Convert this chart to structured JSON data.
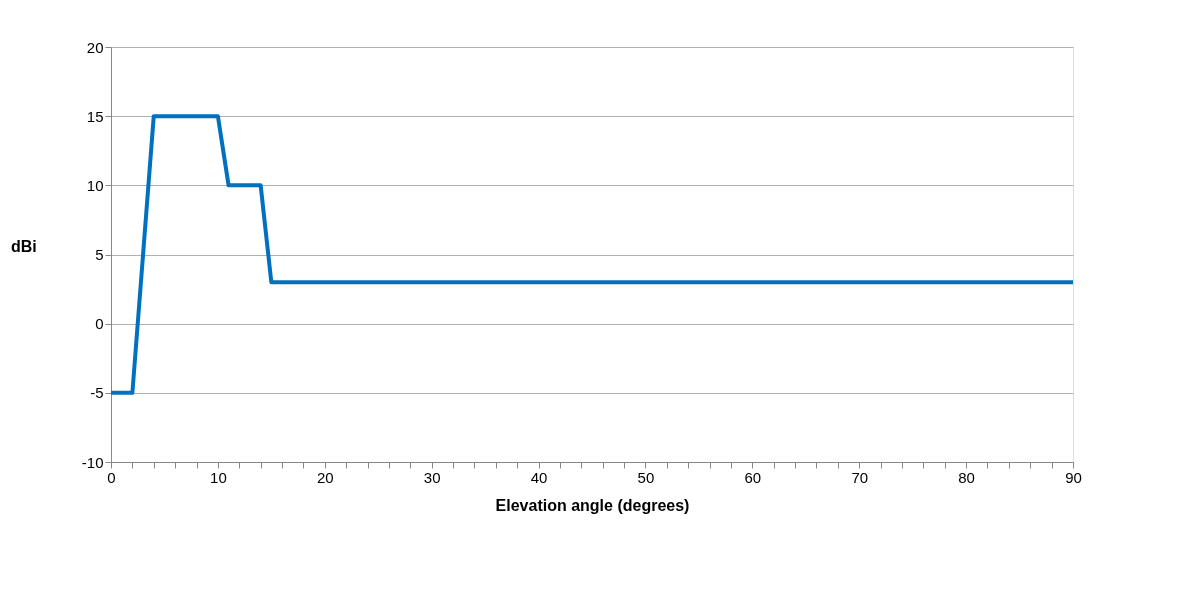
{
  "chart_data": {
    "type": "line",
    "xlabel": "Elevation angle (degrees)",
    "ylabel": "dBi",
    "x": [
      0,
      2,
      4,
      10,
      11,
      14,
      15,
      90
    ],
    "series": [
      {
        "color": "#0070c0",
        "values": [
          -5,
          -5,
          15,
          15,
          10,
          10,
          3,
          3
        ]
      }
    ],
    "xlim": [
      0,
      90
    ],
    "ylim": [
      -10,
      20
    ],
    "xticks": [
      0,
      {
        "value": 2,
        "label": null
      },
      {
        "value": 4,
        "label": null
      },
      {
        "value": 6,
        "label": null
      },
      {
        "value": 8,
        "label": null
      },
      10,
      {
        "value": 12,
        "label": null
      },
      {
        "value": 14,
        "label": null
      },
      {
        "value": 16,
        "label": null
      },
      {
        "value": 18,
        "label": null
      },
      20,
      {
        "value": 22,
        "label": null
      },
      {
        "value": 24,
        "label": null
      },
      {
        "value": 26,
        "label": null
      },
      {
        "value": 28,
        "label": null
      },
      30,
      {
        "value": 32,
        "label": null
      },
      {
        "value": 34,
        "label": null
      },
      {
        "value": 36,
        "label": null
      },
      {
        "value": 38,
        "label": null
      },
      40,
      {
        "value": 42,
        "label": null
      },
      {
        "value": 44,
        "label": null
      },
      {
        "value": 46,
        "label": null
      },
      {
        "value": 48,
        "label": null
      },
      50,
      {
        "value": 52,
        "label": null
      },
      {
        "value": 54,
        "label": null
      },
      {
        "value": 56,
        "label": null
      },
      {
        "value": 58,
        "label": null
      },
      60,
      {
        "value": 62,
        "label": null
      },
      {
        "value": 64,
        "label": null
      },
      {
        "value": 66,
        "label": null
      },
      {
        "value": 68,
        "label": null
      },
      70,
      {
        "value": 72,
        "label": null
      },
      {
        "value": 74,
        "label": null
      },
      {
        "value": 76,
        "label": null
      },
      {
        "value": 78,
        "label": null
      },
      80,
      {
        "value": 82,
        "label": null
      },
      {
        "value": 84,
        "label": null
      },
      {
        "value": 86,
        "label": null
      },
      {
        "value": 88,
        "label": null
      },
      90
    ],
    "yticks": [
      -10,
      -5,
      0,
      5,
      10,
      15,
      20
    ],
    "grid": "y",
    "marker": "none",
    "line_style": "solid"
  }
}
